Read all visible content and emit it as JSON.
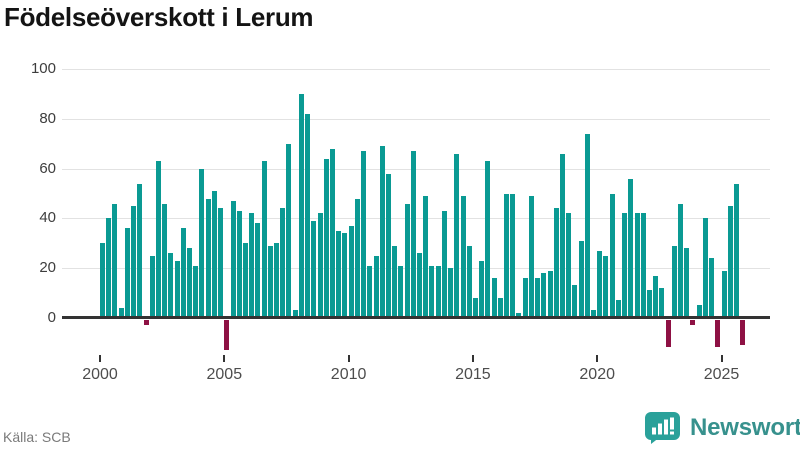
{
  "title": "Födelseöverskott i Lerum",
  "source": {
    "label": "Källa: SCB"
  },
  "branding": {
    "name": "Newsworthy",
    "icon": "newsworthy-speech-bubble-bars-icon"
  },
  "colors": {
    "positive_bar": "#0a9a93",
    "negative_bar": "#8e1144",
    "axis_line": "#333333",
    "gridline": "#e2e2e2",
    "y_label": "#3d3d3d",
    "x_label": "#4d4d4d",
    "source_text": "#7a7a7a",
    "brand_teal": "#37918d",
    "title_text": "#141414"
  },
  "chart_data": {
    "type": "bar",
    "title": "Födelseöverskott i Lerum",
    "xlabel": "",
    "ylabel": "",
    "period": "quarterly",
    "start": "2000 Q1",
    "end": "2025 Q4",
    "values": [
      30,
      40,
      46,
      4,
      36,
      45,
      54,
      -3,
      25,
      63,
      46,
      26,
      23,
      36,
      28,
      21,
      60,
      48,
      51,
      44,
      -13,
      47,
      43,
      30,
      42,
      38,
      63,
      29,
      30,
      44,
      70,
      3,
      90,
      82,
      39,
      42,
      64,
      68,
      35,
      34,
      37,
      48,
      67,
      21,
      25,
      69,
      58,
      29,
      21,
      46,
      67,
      26,
      49,
      21,
      21,
      43,
      20,
      66,
      49,
      29,
      8,
      23,
      63,
      16,
      8,
      50,
      50,
      2,
      16,
      49,
      16,
      18,
      19,
      44,
      66,
      42,
      13,
      31,
      74,
      3,
      27,
      25,
      50,
      7,
      42,
      56,
      42,
      42,
      11,
      17,
      12,
      -12,
      29,
      46,
      28,
      -3,
      5,
      40,
      24,
      -12,
      19,
      45,
      54,
      -11
    ],
    "y_ticks": [
      0,
      20,
      40,
      60,
      80,
      100
    ],
    "y_tick_labels": [
      "0",
      "20",
      "40",
      "60",
      "80",
      "100"
    ],
    "x_tick_labels": [
      "2000",
      "2005",
      "2010",
      "2015",
      "2020",
      "2025"
    ],
    "x_tick_interval_quarters": 20,
    "ylim_visible": [
      -18,
      100
    ],
    "grid": "horizontal",
    "legend": "none"
  }
}
